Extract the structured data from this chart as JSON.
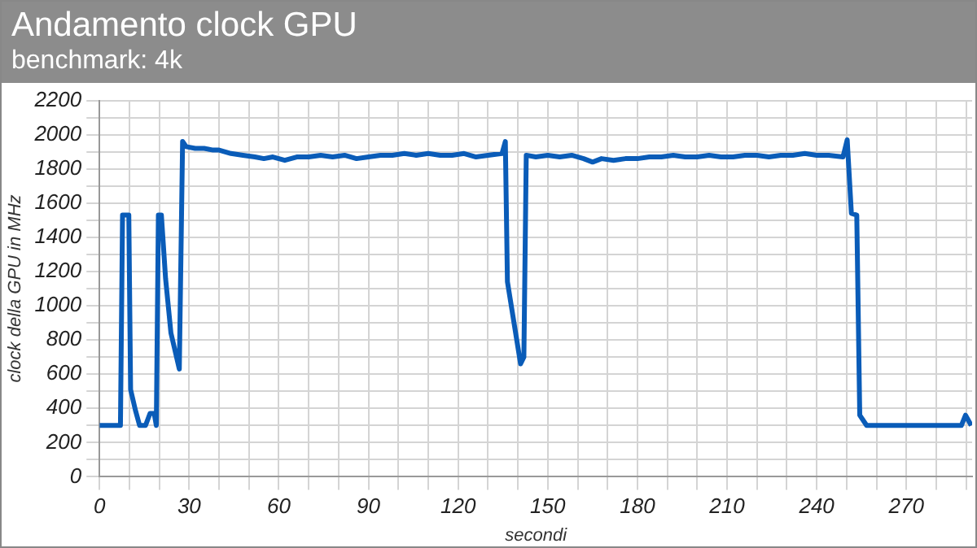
{
  "chart_data": {
    "type": "line",
    "title": "Andamento clock GPU",
    "subtitle": "benchmark: 4k",
    "xlabel": "secondi",
    "ylabel": "clock della GPU in MHz",
    "x": [
      0,
      7,
      7.7,
      9.8,
      10.4,
      12,
      13.4,
      15.4,
      16.9,
      18.3,
      19,
      19.7,
      20.7,
      22.1,
      23.9,
      26.7,
      27.8,
      29,
      32,
      35,
      38,
      40,
      44,
      48,
      52,
      55,
      58,
      62,
      66,
      70,
      74,
      78,
      82,
      86,
      90,
      94,
      98,
      102,
      106,
      110,
      114,
      118,
      122,
      126,
      130,
      134.7,
      135.8,
      136.5,
      140.9,
      142,
      142.8,
      146,
      150,
      154,
      158,
      162,
      165,
      168,
      172,
      176,
      180,
      184,
      188,
      192,
      196,
      200,
      204,
      208,
      212,
      216,
      220,
      224,
      228,
      232,
      236,
      240,
      244,
      248.8,
      250.2,
      251.6,
      253.4,
      254.4,
      256.7,
      288.4,
      289.8,
      291.7
    ],
    "series": [
      {
        "color": "#0a5cb8",
        "values": [
          300,
          300,
          1530,
          1530,
          510,
          390,
          300,
          300,
          370,
          370,
          300,
          1530,
          1530,
          1160,
          840,
          630,
          1960,
          1930,
          1920,
          1920,
          1910,
          1910,
          1890,
          1880,
          1870,
          1860,
          1870,
          1850,
          1870,
          1870,
          1880,
          1870,
          1880,
          1860,
          1870,
          1880,
          1880,
          1890,
          1880,
          1890,
          1880,
          1880,
          1890,
          1870,
          1880,
          1890,
          1960,
          1140,
          660,
          700,
          1880,
          1870,
          1880,
          1870,
          1880,
          1860,
          1840,
          1860,
          1850,
          1860,
          1860,
          1870,
          1870,
          1880,
          1870,
          1870,
          1880,
          1870,
          1870,
          1880,
          1880,
          1870,
          1880,
          1880,
          1890,
          1880,
          1880,
          1870,
          1970,
          1540,
          1530,
          360,
          300,
          300,
          360,
          300
        ]
      }
    ],
    "xlim": [
      0,
      292
    ],
    "xticks": [
      0,
      {
        "value": 10,
        "label": null
      },
      {
        "value": 20,
        "label": null
      },
      30,
      {
        "value": 40,
        "label": null
      },
      {
        "value": 50,
        "label": null
      },
      60,
      {
        "value": 70,
        "label": null
      },
      {
        "value": 80,
        "label": null
      },
      90,
      {
        "value": 100,
        "label": null
      },
      {
        "value": 110,
        "label": null
      },
      120,
      {
        "value": 130,
        "label": null
      },
      {
        "value": 140,
        "label": null
      },
      150,
      {
        "value": 160,
        "label": null
      },
      {
        "value": 170,
        "label": null
      },
      180,
      {
        "value": 190,
        "label": null
      },
      {
        "value": 200,
        "label": null
      },
      210,
      {
        "value": 220,
        "label": null
      },
      {
        "value": 230,
        "label": null
      },
      240,
      {
        "value": 250,
        "label": null
      },
      {
        "value": 260,
        "label": null
      },
      270,
      {
        "value": 280,
        "label": null
      },
      {
        "value": 290,
        "label": null
      }
    ],
    "ylim": [
      0,
      2200
    ],
    "yticks": [
      0,
      {
        "value": 100,
        "label": null
      },
      200,
      {
        "value": 300,
        "label": null
      },
      400,
      {
        "value": 500,
        "label": null
      },
      600,
      {
        "value": 700,
        "label": null
      },
      800,
      {
        "value": 900,
        "label": null
      },
      1000,
      {
        "value": 1100,
        "label": null
      },
      1200,
      {
        "value": 1300,
        "label": null
      },
      1400,
      {
        "value": 1500,
        "label": null
      },
      1600,
      {
        "value": 1700,
        "label": null
      },
      1800,
      {
        "value": 1900,
        "label": null
      },
      2000,
      {
        "value": 2100,
        "label": null
      },
      2200
    ],
    "grid": true,
    "legend": false,
    "marker": "none",
    "line_style": "solid"
  }
}
